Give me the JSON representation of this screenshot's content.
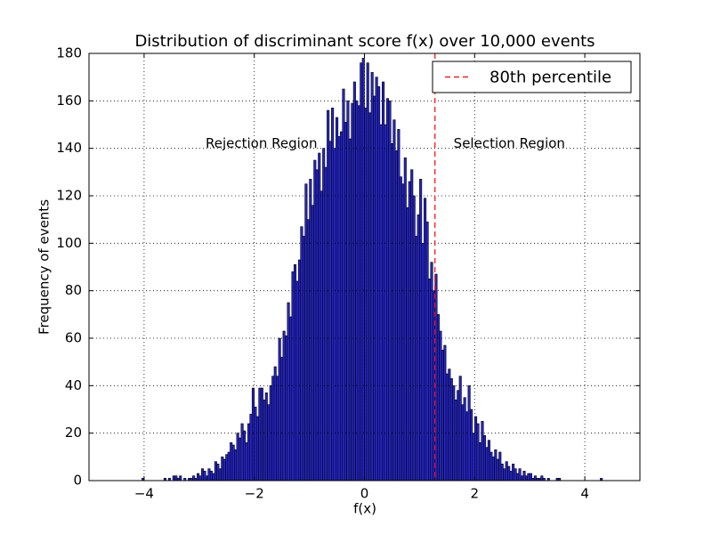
{
  "chart_data": {
    "type": "histogram",
    "title": "Distribution of discriminant score f(x) over 10,000 events",
    "x_label": "f(x)",
    "y_label": "Frequency of events",
    "bins": [
      -4.04,
      -4,
      -3.96,
      -3.92,
      -3.88,
      -3.84,
      -3.8,
      -3.76,
      -3.72,
      -3.68,
      -3.64,
      -3.6,
      -3.56,
      -3.52,
      -3.48,
      -3.44,
      -3.4,
      -3.36,
      -3.32,
      -3.28,
      -3.24,
      -3.2,
      -3.16,
      -3.12,
      -3.08,
      -3.04,
      -3,
      -2.96,
      -2.92,
      -2.88,
      -2.84,
      -2.8,
      -2.76,
      -2.72,
      -2.68,
      -2.64,
      -2.6,
      -2.56,
      -2.52,
      -2.48,
      -2.44,
      -2.4,
      -2.36,
      -2.32,
      -2.28,
      -2.24,
      -2.2,
      -2.16,
      -2.12,
      -2.08,
      -2.04,
      -2,
      -1.96,
      -1.92,
      -1.88,
      -1.84,
      -1.8,
      -1.76,
      -1.72,
      -1.68,
      -1.64,
      -1.6,
      -1.56,
      -1.52,
      -1.48,
      -1.44,
      -1.4,
      -1.36,
      -1.32,
      -1.28,
      -1.24,
      -1.2,
      -1.16,
      -1.12,
      -1.08,
      -1.04,
      -1,
      -0.96,
      -0.92,
      -0.88,
      -0.84,
      -0.8,
      -0.76,
      -0.72,
      -0.68,
      -0.64,
      -0.6,
      -0.56,
      -0.52,
      -0.48,
      -0.44,
      -0.4,
      -0.36,
      -0.32,
      -0.28,
      -0.24,
      -0.2,
      -0.16,
      -0.12,
      -0.08,
      -0.04,
      0,
      0.04,
      0.08,
      0.12,
      0.16,
      0.2,
      0.24,
      0.28,
      0.32,
      0.36,
      0.4,
      0.44,
      0.48,
      0.52,
      0.56,
      0.6,
      0.64,
      0.68,
      0.72,
      0.76,
      0.8,
      0.84,
      0.88,
      0.92,
      0.96,
      1,
      1.04,
      1.08,
      1.12,
      1.16,
      1.2,
      1.24,
      1.28,
      1.32,
      1.36,
      1.4,
      1.44,
      1.48,
      1.52,
      1.56,
      1.6,
      1.64,
      1.68,
      1.72,
      1.76,
      1.8,
      1.84,
      1.88,
      1.92,
      1.96,
      2,
      2.04,
      2.08,
      2.12,
      2.16,
      2.2,
      2.24,
      2.28,
      2.32,
      2.36,
      2.4,
      2.44,
      2.48,
      2.52,
      2.56,
      2.6,
      2.64,
      2.68,
      2.72,
      2.76,
      2.8,
      2.84,
      2.88,
      2.92,
      2.96,
      3,
      3.04,
      3.08,
      3.12,
      3.16,
      3.2,
      3.24,
      3.28,
      3.32,
      3.36,
      3.4,
      3.44,
      3.48,
      3.52,
      3.56,
      3.6,
      3.64,
      3.68,
      3.72,
      3.76,
      3.8,
      3.84,
      3.88,
      3.92,
      3.96,
      4,
      4.04,
      4.08,
      4.12,
      4.16,
      4.2,
      4.24,
      4.28,
      4.32,
      4.36
    ],
    "counts": [
      1,
      0,
      0,
      0,
      0,
      0,
      0,
      0,
      0,
      0,
      1,
      0,
      1,
      0,
      2,
      2,
      1,
      2,
      0,
      1,
      0,
      1,
      1,
      2,
      1,
      3,
      2,
      5,
      4,
      2,
      5,
      4,
      3,
      8,
      7,
      5,
      10,
      9,
      11,
      12,
      16,
      15,
      13,
      20,
      18,
      24,
      21,
      16,
      24,
      28,
      39,
      31,
      27,
      39,
      39,
      34,
      37,
      32,
      40,
      44,
      48,
      44,
      60,
      52,
      63,
      61,
      75,
      69,
      88,
      91,
      84,
      93,
      107,
      103,
      125,
      110,
      127,
      116,
      135,
      131,
      138,
      122,
      140,
      132,
      156,
      143,
      157,
      140,
      153,
      145,
      147,
      165,
      151,
      160,
      144,
      159,
      168,
      160,
      158,
      176,
      178,
      157,
      176,
      155,
      172,
      162,
      170,
      166,
      150,
      168,
      150,
      161,
      160,
      142,
      152,
      139,
      148,
      128,
      125,
      136,
      115,
      126,
      131,
      120,
      103,
      112,
      127,
      100,
      119,
      109,
      85,
      92,
      80,
      87,
      70,
      63,
      55,
      57,
      45,
      47,
      43,
      40,
      34,
      38,
      44,
      32,
      35,
      29,
      40,
      30,
      20,
      27,
      24,
      16,
      25,
      19,
      14,
      17,
      12,
      10,
      13,
      9,
      12,
      7,
      5,
      8,
      6,
      4,
      7,
      5,
      3,
      5,
      2,
      4,
      2,
      3,
      3,
      1,
      2,
      1,
      1,
      2,
      1,
      0,
      1,
      0,
      0,
      0,
      1,
      1,
      0,
      0,
      0,
      0,
      0,
      0,
      0,
      0,
      0,
      0,
      0,
      0,
      0,
      0,
      0,
      0,
      0,
      0,
      1,
      0
    ],
    "color": "#2626c8",
    "edge_color": "#000000",
    "xlim": [
      -5,
      5
    ],
    "xticks": [
      {
        "value": -4,
        "label": "−4"
      },
      {
        "value": -2,
        "label": "−2"
      },
      0,
      2,
      4
    ],
    "ylim": [
      0,
      180
    ],
    "yticks": [
      0,
      20,
      40,
      60,
      80,
      100,
      120,
      140,
      160,
      180
    ],
    "grid": true,
    "vline": {
      "name": "80th percentile",
      "x": 1.28,
      "color": "#ff0000"
    },
    "legend": "upper right",
    "annotations": [
      {
        "text": "Rejection Region",
        "x": -1.87,
        "y": 142
      },
      {
        "text": "Selection Region",
        "x": 2.63,
        "y": 142
      }
    ]
  }
}
